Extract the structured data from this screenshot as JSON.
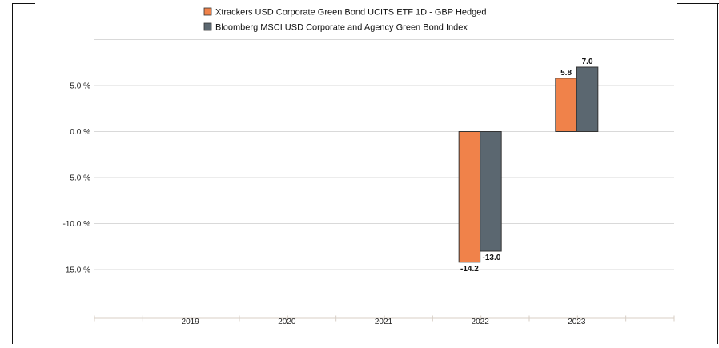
{
  "chart_data": {
    "type": "bar",
    "title": "",
    "xlabel": "",
    "ylabel": "",
    "categories": [
      "2019",
      "2020",
      "2021",
      "2022",
      "2023"
    ],
    "series": [
      {
        "name": "Xtrackers USD Corporate Green Bond UCITS ETF 1D - GBP Hedged",
        "color": "#f0824a",
        "values": [
          null,
          null,
          null,
          -14.2,
          5.8
        ],
        "labels": [
          "",
          "",
          "",
          "-14.2",
          "5.8"
        ]
      },
      {
        "name": "Bloomberg MSCI USD Corporate and Agency Green Bond Index",
        "color": "#5b6770",
        "values": [
          null,
          null,
          null,
          -13.0,
          7.0
        ],
        "labels": [
          "",
          "",
          "",
          "-13.0",
          "7.0"
        ]
      }
    ],
    "yticks": [
      5.0,
      0.0,
      -5.0,
      -10.0,
      -15.0
    ],
    "ytick_labels": [
      "5.0 %",
      "0.0 %",
      "-5.0 %",
      "-10.0 %",
      "-15.0 %"
    ],
    "ylim": [
      -20,
      10
    ],
    "grid": true,
    "legend_position": "top"
  }
}
